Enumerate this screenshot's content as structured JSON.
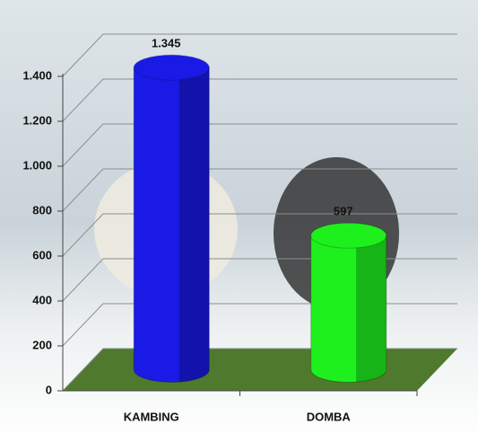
{
  "chart_data": {
    "type": "bar",
    "style": "3d-cylinder",
    "categories": [
      "KAMBING",
      "DOMBA"
    ],
    "values": [
      1345,
      597
    ],
    "value_labels": [
      "1.345",
      "597"
    ],
    "colors": [
      "#1a1ae6",
      "#1ef01e"
    ],
    "ylim": [
      0,
      1600
    ],
    "yticks": [
      0,
      200,
      400,
      600,
      800,
      {
        "value": 1000,
        "label": "1.000"
      },
      {
        "value": 1200,
        "label": "1.200"
      },
      {
        "value": 1400,
        "label": "1.400"
      }
    ],
    "grid": true,
    "floor_color": "#4f7a2e"
  }
}
